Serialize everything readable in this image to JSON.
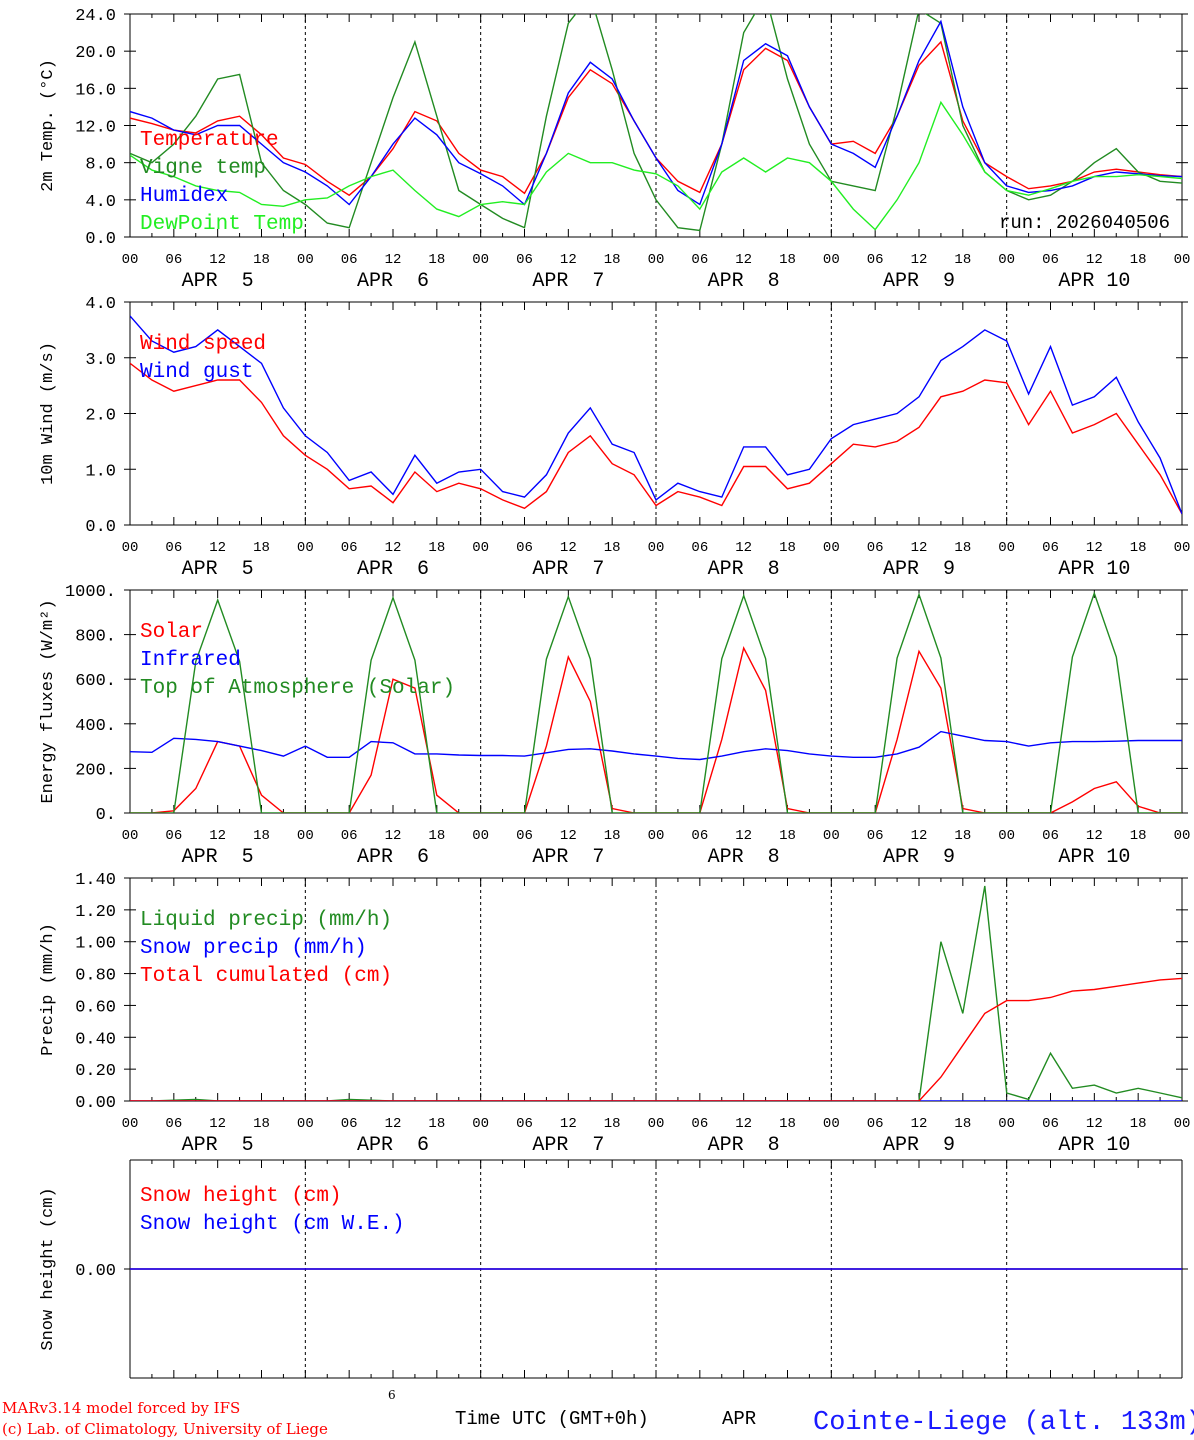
{
  "time_axis": {
    "hours": [
      0,
      6,
      12,
      18,
      24,
      30,
      36,
      42,
      48,
      54,
      60,
      66,
      72,
      78,
      84,
      90,
      96,
      102,
      108,
      114,
      120,
      126,
      132,
      138,
      144
    ],
    "hour_labels": [
      "00",
      "06",
      "12",
      "18",
      "00",
      "06",
      "12",
      "18",
      "00",
      "06",
      "12",
      "18",
      "00",
      "06",
      "12",
      "18",
      "00",
      "06",
      "12",
      "18",
      "00",
      "06",
      "12",
      "18",
      "00"
    ],
    "day_labels": [
      "APR  5",
      "APR  6",
      "APR  7",
      "APR  8",
      "APR  9",
      "APR 10"
    ],
    "xlim": [
      0,
      144
    ],
    "step_hours": 3
  },
  "run_label": "run: 2026040506",
  "footer": {
    "model": "MARv3.14 model forced by IFS",
    "credit": "(c) Lab. of Climatology, University of Liege",
    "stray_digit": "6",
    "xlabel": "Time UTC (GMT+0h)",
    "month": "APR",
    "station": "Cointe-Liege (alt. 133m)"
  },
  "chart_data": [
    {
      "type": "line",
      "ylabel": "2m Temp. (°C)",
      "ylim": [
        0,
        24
      ],
      "yticks": [
        0,
        4,
        8,
        12,
        16,
        20,
        24
      ],
      "ytick_labels": [
        "0.0",
        "4.0",
        "8.0",
        "12.0",
        "16.0",
        "20.0",
        "24.0"
      ],
      "legend_position": "middle-left",
      "series": [
        {
          "name": "Temperature",
          "color": "#ff0000",
          "values": [
            12.8,
            12.2,
            11.5,
            11.2,
            12.5,
            13.0,
            11.0,
            8.5,
            7.8,
            6.0,
            4.5,
            6.5,
            9.5,
            13.5,
            12.5,
            9.0,
            7.2,
            6.5,
            4.7,
            9.0,
            15.0,
            18.0,
            16.5,
            12.5,
            8.5,
            6.0,
            4.8,
            10.0,
            18.0,
            20.3,
            19.0,
            14.0,
            10.0,
            10.3,
            9.0,
            13.0,
            18.5,
            21.0,
            12.5,
            8.0,
            6.5,
            5.2,
            5.5,
            6.0,
            7.0,
            7.3,
            7.0,
            6.7,
            6.5
          ]
        },
        {
          "name": "Vigne temp",
          "color": "#228b22",
          "values": [
            9.0,
            8.0,
            10.0,
            13.0,
            17.0,
            17.5,
            8.0,
            5.0,
            3.5,
            1.5,
            1.0,
            8.0,
            15.0,
            21.0,
            13.0,
            5.0,
            3.5,
            2.0,
            1.0,
            13.0,
            23.0,
            26.0,
            18.0,
            9.0,
            4.0,
            1.0,
            0.7,
            10.0,
            22.0,
            26.0,
            17.0,
            10.0,
            6.0,
            5.5,
            5.0,
            14.0,
            24.5,
            23.0,
            12.0,
            7.0,
            5.0,
            4.0,
            4.5,
            6.0,
            8.0,
            9.5,
            7.0,
            6.0,
            5.8
          ]
        },
        {
          "name": "Humidex",
          "color": "#0000ff",
          "values": [
            13.5,
            12.8,
            11.5,
            11.0,
            12.0,
            12.0,
            10.0,
            8.0,
            7.0,
            5.5,
            3.5,
            6.5,
            10.0,
            12.8,
            11.0,
            8.0,
            6.8,
            5.5,
            3.5,
            9.0,
            15.5,
            18.8,
            17.0,
            12.5,
            8.5,
            5.0,
            3.5,
            10.0,
            19.0,
            20.8,
            19.5,
            14.0,
            10.0,
            9.0,
            7.5,
            13.0,
            19.0,
            23.2,
            14.0,
            8.0,
            5.5,
            4.8,
            5.0,
            5.5,
            6.5,
            7.0,
            6.8,
            6.6,
            6.5
          ]
        },
        {
          "name": "DewPoint Temp",
          "color": "#22ee22",
          "values": [
            8.8,
            7.2,
            6.5,
            5.5,
            5.0,
            4.8,
            3.5,
            3.3,
            4.0,
            4.2,
            5.5,
            6.5,
            7.2,
            5.0,
            3.0,
            2.2,
            3.5,
            3.8,
            3.5,
            7.0,
            9.0,
            8.0,
            8.0,
            7.2,
            6.8,
            5.5,
            3.0,
            7.0,
            8.5,
            7.0,
            8.5,
            8.0,
            6.0,
            3.0,
            0.8,
            4.0,
            8.0,
            14.5,
            11.0,
            7.0,
            5.0,
            4.5,
            5.2,
            6.0,
            6.5,
            6.5,
            6.7,
            6.5,
            6.3
          ]
        }
      ]
    },
    {
      "type": "line",
      "ylabel": "10m Wind (m/s)",
      "ylim": [
        0,
        4
      ],
      "yticks": [
        0,
        1,
        2,
        3,
        4
      ],
      "ytick_labels": [
        "0.0",
        "1.0",
        "2.0",
        "3.0",
        "4.0"
      ],
      "legend_position": "top-left",
      "series": [
        {
          "name": "Wind speed",
          "color": "#ff0000",
          "values": [
            2.9,
            2.6,
            2.4,
            2.5,
            2.6,
            2.6,
            2.2,
            1.6,
            1.25,
            1.0,
            0.65,
            0.7,
            0.4,
            0.95,
            0.6,
            0.75,
            0.65,
            0.45,
            0.3,
            0.6,
            1.3,
            1.6,
            1.1,
            0.9,
            0.35,
            0.6,
            0.5,
            0.35,
            1.05,
            1.05,
            0.65,
            0.75,
            1.1,
            1.45,
            1.4,
            1.5,
            1.75,
            2.3,
            2.4,
            2.6,
            2.55,
            1.8,
            2.4,
            1.65,
            1.8,
            2.0,
            1.45,
            0.9,
            0.2
          ]
        },
        {
          "name": "Wind gust",
          "color": "#0000ff",
          "values": [
            3.75,
            3.3,
            3.1,
            3.2,
            3.5,
            3.2,
            2.9,
            2.1,
            1.6,
            1.3,
            0.8,
            0.95,
            0.55,
            1.25,
            0.75,
            0.95,
            1.0,
            0.6,
            0.5,
            0.9,
            1.65,
            2.1,
            1.45,
            1.3,
            0.45,
            0.75,
            0.6,
            0.5,
            1.4,
            1.4,
            0.9,
            1.0,
            1.55,
            1.8,
            1.9,
            2.0,
            2.3,
            2.95,
            3.2,
            3.5,
            3.3,
            2.35,
            3.2,
            2.15,
            2.3,
            2.65,
            1.85,
            1.2,
            0.2
          ]
        }
      ]
    },
    {
      "type": "line",
      "ylabel": "Energy fluxes (W/m²)",
      "ylim": [
        0,
        1000
      ],
      "yticks": [
        0,
        200,
        400,
        600,
        800,
        1000
      ],
      "ytick_labels": [
        "0.",
        "200.",
        "400.",
        "600.",
        "800.",
        "1000."
      ],
      "legend_position": "top-left",
      "series": [
        {
          "name": "Solar",
          "color": "#ff0000",
          "values": [
            0,
            0,
            10,
            110,
            320,
            300,
            80,
            0,
            0,
            0,
            0,
            170,
            600,
            560,
            80,
            0,
            0,
            0,
            0,
            300,
            700,
            500,
            20,
            0,
            0,
            0,
            0,
            330,
            740,
            550,
            20,
            0,
            0,
            0,
            0,
            330,
            725,
            560,
            20,
            0,
            0,
            0,
            0,
            50,
            110,
            140,
            30,
            0,
            0
          ]
        },
        {
          "name": "Infrared",
          "color": "#0000ff",
          "values": [
            275,
            272,
            335,
            330,
            320,
            300,
            280,
            255,
            300,
            250,
            250,
            320,
            315,
            265,
            265,
            260,
            258,
            258,
            255,
            270,
            285,
            288,
            278,
            265,
            255,
            245,
            240,
            255,
            275,
            288,
            280,
            265,
            255,
            250,
            250,
            265,
            295,
            365,
            345,
            325,
            320,
            300,
            315,
            320,
            320,
            322,
            325,
            325,
            325
          ]
        },
        {
          "name": "Top of Atmosphere (Solar)",
          "color": "#228b22",
          "values": [
            0,
            0,
            0,
            680,
            955,
            680,
            0,
            0,
            0,
            0,
            0,
            685,
            965,
            685,
            0,
            0,
            0,
            0,
            0,
            690,
            970,
            690,
            0,
            0,
            0,
            0,
            0,
            692,
            975,
            692,
            0,
            0,
            0,
            0,
            0,
            695,
            980,
            695,
            0,
            0,
            0,
            0,
            0,
            700,
            985,
            700,
            0,
            0,
            0
          ]
        }
      ]
    },
    {
      "type": "line",
      "ylabel": "Precip (mm/h)",
      "ylim": [
        0,
        1.4
      ],
      "yticks": [
        0,
        0.2,
        0.4,
        0.6,
        0.8,
        1.0,
        1.2,
        1.4
      ],
      "ytick_labels": [
        "0.00",
        "0.20",
        "0.40",
        "0.60",
        "0.80",
        "1.00",
        "1.20",
        "1.40"
      ],
      "legend_position": "top-left",
      "series": [
        {
          "name": "Liquid precip (mm/h)",
          "color": "#228b22",
          "values": [
            0,
            0,
            0.005,
            0.01,
            0,
            0,
            0,
            0,
            0,
            0,
            0.01,
            0.005,
            0,
            0,
            0,
            0,
            0,
            0,
            0,
            0,
            0,
            0,
            0,
            0,
            0,
            0,
            0,
            0,
            0,
            0,
            0,
            0,
            0,
            0,
            0,
            0,
            0,
            1.0,
            0.55,
            1.35,
            0.05,
            0.01,
            0.3,
            0.08,
            0.1,
            0.05,
            0.08,
            0.05,
            0.02
          ]
        },
        {
          "name": "Snow precip (mm/h)",
          "color": "#0000ff",
          "values": [
            0,
            0,
            0,
            0,
            0,
            0,
            0,
            0,
            0,
            0,
            0,
            0,
            0,
            0,
            0,
            0,
            0,
            0,
            0,
            0,
            0,
            0,
            0,
            0,
            0,
            0,
            0,
            0,
            0,
            0,
            0,
            0,
            0,
            0,
            0,
            0,
            0,
            0,
            0,
            0,
            0,
            0,
            0,
            0,
            0,
            0,
            0,
            0,
            0
          ]
        },
        {
          "name": "Total cumulated (cm)",
          "color": "#ff0000",
          "values": [
            0,
            0,
            0,
            0,
            0,
            0,
            0,
            0,
            0,
            0,
            0,
            0,
            0,
            0,
            0,
            0,
            0,
            0,
            0,
            0,
            0,
            0,
            0,
            0,
            0,
            0,
            0,
            0,
            0,
            0,
            0,
            0,
            0,
            0,
            0,
            0,
            0,
            0.15,
            0.35,
            0.55,
            0.63,
            0.63,
            0.65,
            0.69,
            0.7,
            0.72,
            0.74,
            0.76,
            0.77
          ]
        }
      ]
    },
    {
      "type": "line",
      "ylabel": "Snow height (cm)",
      "ylim": [
        -1,
        1
      ],
      "yticks": [
        0
      ],
      "ytick_labels": [
        "0.00"
      ],
      "legend_position": "top-left",
      "series": [
        {
          "name": "Snow height (cm)",
          "color": "#ff0000",
          "values": [
            0,
            0,
            0,
            0,
            0,
            0,
            0,
            0,
            0,
            0,
            0,
            0,
            0,
            0,
            0,
            0,
            0,
            0,
            0,
            0,
            0,
            0,
            0,
            0,
            0,
            0,
            0,
            0,
            0,
            0,
            0,
            0,
            0,
            0,
            0,
            0,
            0,
            0,
            0,
            0,
            0,
            0,
            0,
            0,
            0,
            0,
            0,
            0,
            0
          ]
        },
        {
          "name": "Snow height (cm W.E.)",
          "color": "#0000ff",
          "values": [
            0,
            0,
            0,
            0,
            0,
            0,
            0,
            0,
            0,
            0,
            0,
            0,
            0,
            0,
            0,
            0,
            0,
            0,
            0,
            0,
            0,
            0,
            0,
            0,
            0,
            0,
            0,
            0,
            0,
            0,
            0,
            0,
            0,
            0,
            0,
            0,
            0,
            0,
            0,
            0,
            0,
            0,
            0,
            0,
            0,
            0,
            0,
            0,
            0
          ]
        }
      ]
    }
  ]
}
